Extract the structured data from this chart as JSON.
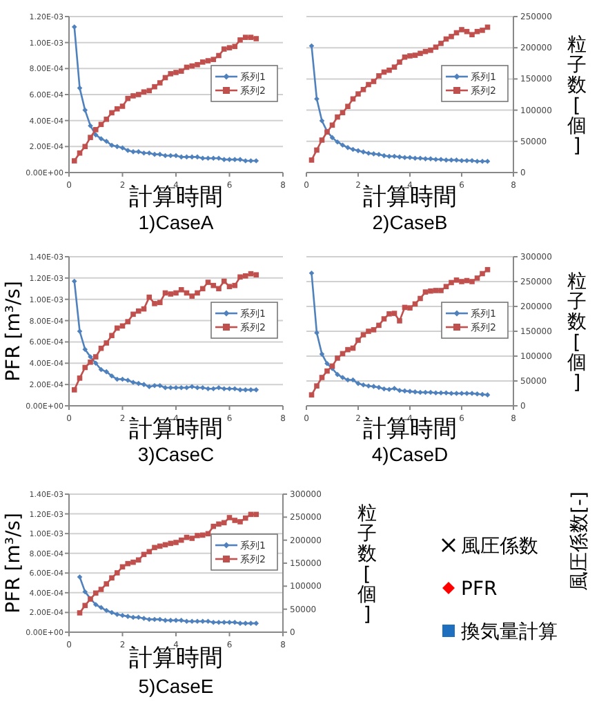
{
  "chart_data": [
    {
      "type": "line",
      "title": "1)CaseA",
      "xlabel": "計算時間",
      "legend": "right",
      "grid": "y",
      "x": [
        0.2,
        0.4,
        0.6,
        0.8,
        1.0,
        1.2,
        1.4,
        1.6,
        1.8,
        2.0,
        2.2,
        2.4,
        2.6,
        2.8,
        3.0,
        3.2,
        3.4,
        3.6,
        3.8,
        4.0,
        4.2,
        4.4,
        4.6,
        4.8,
        5.0,
        5.2,
        5.4,
        5.6,
        5.8,
        6.0,
        6.2,
        6.4,
        6.6,
        6.8,
        7.0
      ],
      "xlim": [
        0,
        8
      ],
      "xticks": [
        0,
        2,
        4,
        6,
        8
      ],
      "ylim": [
        0,
        0.0012
      ],
      "yticks": [
        {
          "value": 0,
          "label": "0.00E+00"
        },
        {
          "value": 0.0002,
          "label": "2.00E-04"
        },
        {
          "value": 0.0004,
          "label": "4.00E-04"
        },
        {
          "value": 0.0006,
          "label": "6.00E-04"
        },
        {
          "value": 0.0008,
          "label": "8.00E-04"
        },
        {
          "value": 0.001,
          "label": "1.00E-03"
        },
        {
          "value": 0.0012,
          "label": "1.20E-03"
        }
      ],
      "series": [
        {
          "name": "系列1",
          "color": "#4f81bd",
          "marker": "diamond",
          "values": [
            0.00112,
            0.00065,
            0.00048,
            0.00036,
            0.00029,
            0.00026,
            0.00024,
            0.00021,
            0.0002,
            0.00019,
            0.00017,
            0.00016,
            0.00016,
            0.00015,
            0.00015,
            0.00014,
            0.00014,
            0.00013,
            0.00013,
            0.00013,
            0.00012,
            0.00012,
            0.00012,
            0.00012,
            0.00011,
            0.00011,
            0.00011,
            0.00011,
            0.0001,
            0.0001,
            0.0001,
            0.0001,
            9e-05,
            9e-05,
            9e-05
          ]
        },
        {
          "name": "系列2",
          "color": "#c0504d",
          "marker": "square",
          "values": [
            9e-05,
            0.00015,
            0.0002,
            0.00027,
            0.00033,
            0.00037,
            0.00041,
            0.00046,
            0.00049,
            0.00051,
            0.00057,
            0.00059,
            0.0006,
            0.00062,
            0.00063,
            0.00066,
            0.00069,
            0.00073,
            0.00076,
            0.00077,
            0.00078,
            0.00081,
            0.00082,
            0.00083,
            0.00085,
            0.00086,
            0.00087,
            0.0009,
            0.00095,
            0.00096,
            0.00097,
            0.00102,
            0.00104,
            0.00104,
            0.00103
          ]
        }
      ]
    },
    {
      "type": "line",
      "title": "2)CaseB",
      "xlabel": "計算時間",
      "y2label": "粒子数[個]",
      "legend": "right",
      "grid": "y",
      "x": [
        0.2,
        0.4,
        0.6,
        0.8,
        1.0,
        1.2,
        1.4,
        1.6,
        1.8,
        2.0,
        2.2,
        2.4,
        2.6,
        2.8,
        3.0,
        3.2,
        3.4,
        3.6,
        3.8,
        4.0,
        4.2,
        4.4,
        4.6,
        4.8,
        5.0,
        5.2,
        5.4,
        5.6,
        5.8,
        6.0,
        6.2,
        6.4,
        6.6,
        6.8,
        7.0
      ],
      "xlim": [
        0,
        8
      ],
      "xticks": [
        0,
        2,
        4,
        6,
        8
      ],
      "y2lim": [
        0,
        250000
      ],
      "y2ticks": [
        0,
        50000,
        100000,
        150000,
        200000,
        250000
      ],
      "series": [
        {
          "name": "系列1",
          "color": "#4f81bd",
          "marker": "diamond",
          "axis": "y2",
          "values": [
            203000,
            118000,
            83000,
            66000,
            56000,
            49000,
            44000,
            40000,
            37000,
            35000,
            33000,
            31000,
            30000,
            29000,
            27000,
            26000,
            26000,
            25000,
            24000,
            24000,
            23000,
            23000,
            22000,
            22000,
            21000,
            21000,
            20000,
            20000,
            20000,
            19000,
            19000,
            19000,
            18000,
            18000,
            18000
          ]
        },
        {
          "name": "系列2",
          "color": "#c0504d",
          "marker": "square",
          "axis": "y2",
          "values": [
            20000,
            36000,
            52000,
            65000,
            76000,
            89000,
            96000,
            106000,
            118000,
            126000,
            133000,
            141000,
            146000,
            155000,
            161000,
            164000,
            169000,
            177000,
            185000,
            187000,
            188000,
            191000,
            194000,
            196000,
            201000,
            207000,
            214000,
            218000,
            224000,
            229000,
            226000,
            221000,
            226000,
            228000,
            233000
          ]
        }
      ]
    },
    {
      "type": "line",
      "title": "3)CaseC",
      "xlabel": "計算時間",
      "ylabel": "PFR [m³/s]",
      "legend": "right",
      "grid": "y",
      "x": [
        0.2,
        0.4,
        0.6,
        0.8,
        1.0,
        1.2,
        1.4,
        1.6,
        1.8,
        2.0,
        2.2,
        2.4,
        2.6,
        2.8,
        3.0,
        3.2,
        3.4,
        3.6,
        3.8,
        4.0,
        4.2,
        4.4,
        4.6,
        4.8,
        5.0,
        5.2,
        5.4,
        5.6,
        5.8,
        6.0,
        6.2,
        6.4,
        6.6,
        6.8,
        7.0
      ],
      "xlim": [
        0,
        8
      ],
      "xticks": [
        0,
        2,
        4,
        6,
        8
      ],
      "ylim": [
        0,
        0.0014
      ],
      "yticks": [
        {
          "value": 0,
          "label": "0.00E+00"
        },
        {
          "value": 0.0002,
          "label": "2.00E-04"
        },
        {
          "value": 0.0004,
          "label": "4.00E-04"
        },
        {
          "value": 0.0006,
          "label": "6.00E-04"
        },
        {
          "value": 0.0008,
          "label": "8.00E-04"
        },
        {
          "value": 0.001,
          "label": "1.00E-03"
        },
        {
          "value": 0.0012,
          "label": "1.20E-03"
        },
        {
          "value": 0.0014,
          "label": "1.40E-03"
        }
      ],
      "series": [
        {
          "name": "系列1",
          "color": "#4f81bd",
          "marker": "diamond",
          "values": [
            0.00117,
            0.0007,
            0.00053,
            0.00046,
            0.0004,
            0.00034,
            0.00032,
            0.00028,
            0.00025,
            0.00025,
            0.00024,
            0.00022,
            0.00021,
            0.0002,
            0.00018,
            0.00019,
            0.00019,
            0.00017,
            0.00017,
            0.00017,
            0.00017,
            0.00017,
            0.00018,
            0.00017,
            0.00017,
            0.00016,
            0.00016,
            0.00017,
            0.00016,
            0.00016,
            0.00016,
            0.00015,
            0.00015,
            0.00015,
            0.00015
          ]
        },
        {
          "name": "系列2",
          "color": "#c0504d",
          "marker": "square",
          "values": [
            0.00015,
            0.00026,
            0.00036,
            0.00041,
            0.00046,
            0.00054,
            0.00059,
            0.00066,
            0.00073,
            0.00075,
            0.00079,
            0.00086,
            0.00089,
            0.00091,
            0.00102,
            0.00096,
            0.00097,
            0.00106,
            0.00105,
            0.00106,
            0.00109,
            0.00106,
            0.00103,
            0.00106,
            0.0011,
            0.00116,
            0.00113,
            0.0011,
            0.00117,
            0.00112,
            0.00113,
            0.00121,
            0.00122,
            0.00124,
            0.00123
          ]
        }
      ]
    },
    {
      "type": "line",
      "title": "4)CaseD",
      "xlabel": "計算時間",
      "y2label": "粒子数[個]",
      "legend": "right",
      "grid": "y",
      "x": [
        0.2,
        0.4,
        0.6,
        0.8,
        1.0,
        1.2,
        1.4,
        1.6,
        1.8,
        2.0,
        2.2,
        2.4,
        2.6,
        2.8,
        3.0,
        3.2,
        3.4,
        3.6,
        3.8,
        4.0,
        4.2,
        4.4,
        4.6,
        4.8,
        5.0,
        5.2,
        5.4,
        5.6,
        5.8,
        6.0,
        6.2,
        6.4,
        6.6,
        6.8,
        7.0
      ],
      "xlim": [
        0,
        8
      ],
      "xticks": [
        0,
        2,
        4,
        6,
        8
      ],
      "y2lim": [
        0,
        300000
      ],
      "y2ticks": [
        0,
        50000,
        100000,
        150000,
        200000,
        250000,
        300000
      ],
      "series": [
        {
          "name": "系列1",
          "color": "#4f81bd",
          "marker": "diamond",
          "axis": "y2",
          "values": [
            267000,
            147000,
            104000,
            85000,
            75000,
            63000,
            57000,
            52000,
            52000,
            45000,
            42000,
            40000,
            39000,
            37000,
            34000,
            33000,
            35000,
            31000,
            30000,
            29000,
            28000,
            27000,
            27000,
            27000,
            26000,
            26000,
            26000,
            25000,
            25000,
            25000,
            25000,
            25000,
            24000,
            23000,
            22000
          ]
        },
        {
          "name": "系列2",
          "color": "#c0504d",
          "marker": "square",
          "axis": "y2",
          "values": [
            22000,
            40000,
            57000,
            70000,
            80000,
            96000,
            105000,
            113000,
            116000,
            132000,
            143000,
            150000,
            153000,
            162000,
            175000,
            185000,
            186000,
            171000,
            198000,
            197000,
            205000,
            216000,
            229000,
            231000,
            232000,
            232000,
            240000,
            248000,
            253000,
            250000,
            252000,
            250000,
            257000,
            266000,
            274000
          ]
        }
      ]
    },
    {
      "type": "line",
      "title": "5)CaseE",
      "xlabel": "計算時間",
      "ylabel": "PFR [m³/s]",
      "y2label": "粒子数[個]",
      "legend": "right",
      "grid": "y",
      "x": [
        0.4,
        0.6,
        0.8,
        1.0,
        1.2,
        1.4,
        1.6,
        1.8,
        2.0,
        2.2,
        2.4,
        2.6,
        2.8,
        3.0,
        3.2,
        3.4,
        3.6,
        3.8,
        4.0,
        4.2,
        4.4,
        4.6,
        4.8,
        5.0,
        5.2,
        5.4,
        5.6,
        5.8,
        6.0,
        6.2,
        6.4,
        6.6,
        6.8,
        7.0
      ],
      "xlim": [
        0,
        8
      ],
      "xticks": [
        0,
        2,
        4,
        6,
        8
      ],
      "ylim": [
        0,
        0.0014
      ],
      "yticks": [
        {
          "value": 0,
          "label": "0.00E+00"
        },
        {
          "value": 0.0002,
          "label": "2.00E-04"
        },
        {
          "value": 0.0004,
          "label": "4.00E-04"
        },
        {
          "value": 0.0006,
          "label": "6.00E-04"
        },
        {
          "value": 0.0008,
          "label": "8.00E-04"
        },
        {
          "value": 0.001,
          "label": "1.00E-03"
        },
        {
          "value": 0.0012,
          "label": "1.20E-03"
        },
        {
          "value": 0.0014,
          "label": "1.40E-03"
        }
      ],
      "y2lim": [
        0,
        300000
      ],
      "y2ticks": [
        0,
        50000,
        100000,
        150000,
        200000,
        250000,
        300000
      ],
      "series": [
        {
          "name": "系列1",
          "color": "#4f81bd",
          "marker": "diamond",
          "values": [
            0.00056,
            0.00041,
            0.00034,
            0.00028,
            0.00025,
            0.00022,
            0.0002,
            0.00018,
            0.00017,
            0.00016,
            0.00015,
            0.00015,
            0.00014,
            0.00013,
            0.00013,
            0.00013,
            0.00012,
            0.00012,
            0.00012,
            0.00012,
            0.00011,
            0.00011,
            0.00011,
            0.00011,
            0.00011,
            0.0001,
            0.0001,
            0.0001,
            0.0001,
            0.0001,
            9e-05,
            9e-05,
            9e-05,
            9e-05
          ]
        },
        {
          "name": "系列2",
          "color": "#c0504d",
          "marker": "square",
          "axis": "y2",
          "values": [
            42000,
            58000,
            72000,
            85000,
            93000,
            105000,
            118000,
            129000,
            142000,
            149000,
            152000,
            157000,
            169000,
            175000,
            184000,
            187000,
            190000,
            193000,
            195000,
            200000,
            206000,
            204000,
            210000,
            211000,
            214000,
            230000,
            235000,
            238000,
            249000,
            243000,
            240000,
            248000,
            256000,
            256000
          ]
        }
      ]
    },
    {
      "type": "other",
      "annotations": [
        "風圧係数[-]"
      ],
      "series": [
        {
          "name": "風圧係数",
          "color": "#000000",
          "marker": "cross"
        },
        {
          "name": "PFR",
          "color": "#ff0000",
          "marker": "diamond"
        },
        {
          "name": "換気量計算",
          "color": "#1f6fbf",
          "marker": "square"
        }
      ]
    }
  ]
}
